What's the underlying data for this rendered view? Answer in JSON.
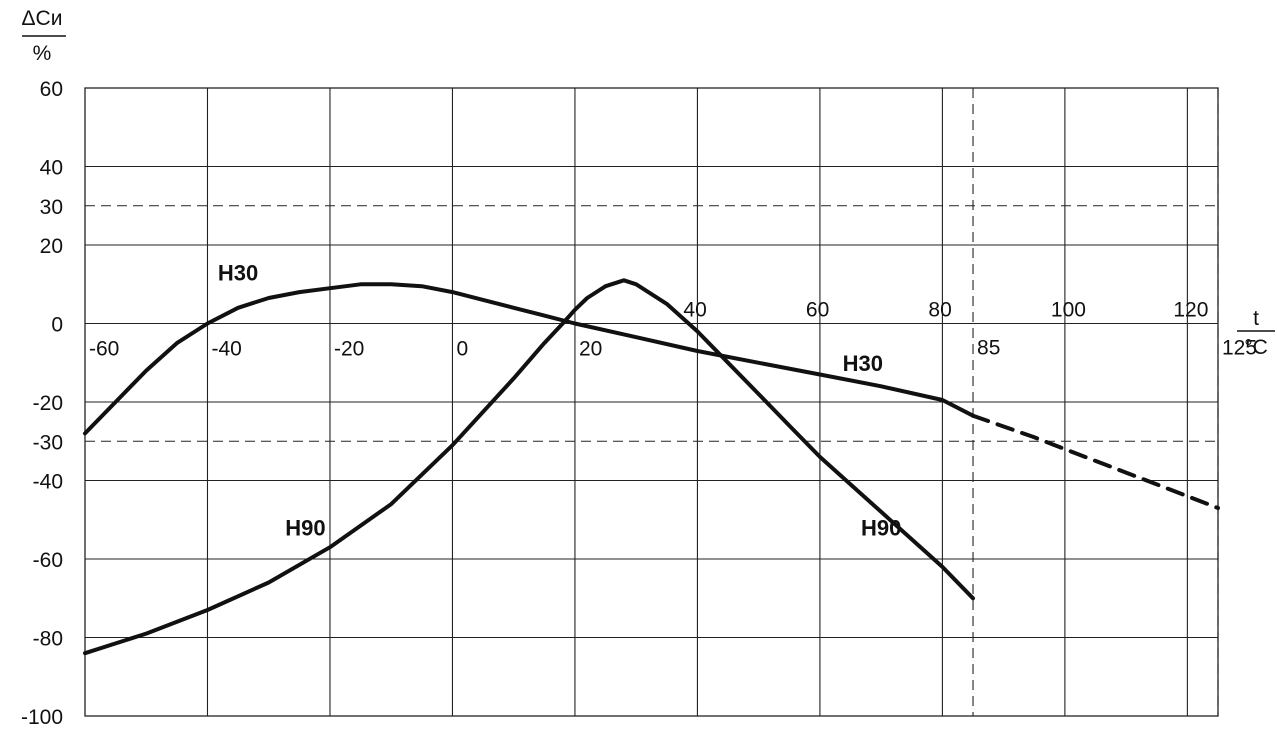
{
  "chart_data": {
    "type": "line",
    "title": "",
    "y_axis_label_top": "ΔCи",
    "y_axis_label_bottom": "%",
    "x_axis_label_top": "t",
    "x_axis_label_bottom": "°C",
    "xlim": [
      -60,
      125
    ],
    "ylim": [
      -100,
      60
    ],
    "x_tick_labels": [
      "-60",
      "-40",
      "-20",
      "0",
      "20",
      "40",
      "60",
      "80",
      "85",
      "100",
      "120",
      "125"
    ],
    "y_tick_labels": [
      "60",
      "40",
      "30",
      "20",
      "0",
      "-20",
      "-30",
      "-40",
      "-60",
      "-80",
      "-100"
    ],
    "x_solid_grid": [
      -40,
      -20,
      0,
      20,
      40,
      60,
      80,
      100,
      120
    ],
    "x_dashed_refs": [
      85,
      125
    ],
    "y_solid_grid": [
      40,
      20,
      0,
      -20,
      -40,
      -60,
      -80
    ],
    "y_dashed_refs": [
      30,
      -30
    ],
    "grid": true,
    "series": [
      {
        "name": "H30",
        "label_positions": [
          [
            -35,
            13
          ],
          [
            67,
            -10
          ]
        ],
        "style": "solid",
        "x": [
          -60,
          -55,
          -50,
          -45,
          -40,
          -35,
          -30,
          -25,
          -20,
          -15,
          -10,
          -5,
          0,
          5,
          10,
          15,
          20,
          30,
          40,
          50,
          60,
          70,
          80,
          85
        ],
        "y": [
          -28,
          -20,
          -12,
          -5,
          0,
          4,
          6.5,
          8,
          9,
          10,
          10,
          9.5,
          8,
          6,
          4,
          2,
          0,
          -3.5,
          -7,
          -10,
          -13,
          -16,
          -19.5,
          -23.5
        ]
      },
      {
        "name": "H30",
        "style": "dashed",
        "x": [
          85,
          95,
          105,
          115,
          125
        ],
        "y": [
          -23.5,
          -29,
          -35,
          -41,
          -47
        ]
      },
      {
        "name": "H90",
        "label_positions": [
          [
            -24,
            -52
          ],
          [
            70,
            -52
          ]
        ],
        "style": "solid",
        "x": [
          -60,
          -50,
          -40,
          -30,
          -20,
          -10,
          0,
          10,
          15,
          18,
          20,
          22,
          25,
          28,
          30,
          35,
          40,
          45,
          50,
          55,
          60,
          65,
          70,
          75,
          80,
          85
        ],
        "y": [
          -84,
          -79,
          -73,
          -66,
          -57,
          -46,
          -31,
          -14,
          -5,
          0,
          3.5,
          6.5,
          9.5,
          11,
          10,
          5,
          -2,
          -10,
          -18,
          -26,
          -34,
          -41,
          -48,
          -55,
          -62,
          -70
        ]
      }
    ]
  }
}
